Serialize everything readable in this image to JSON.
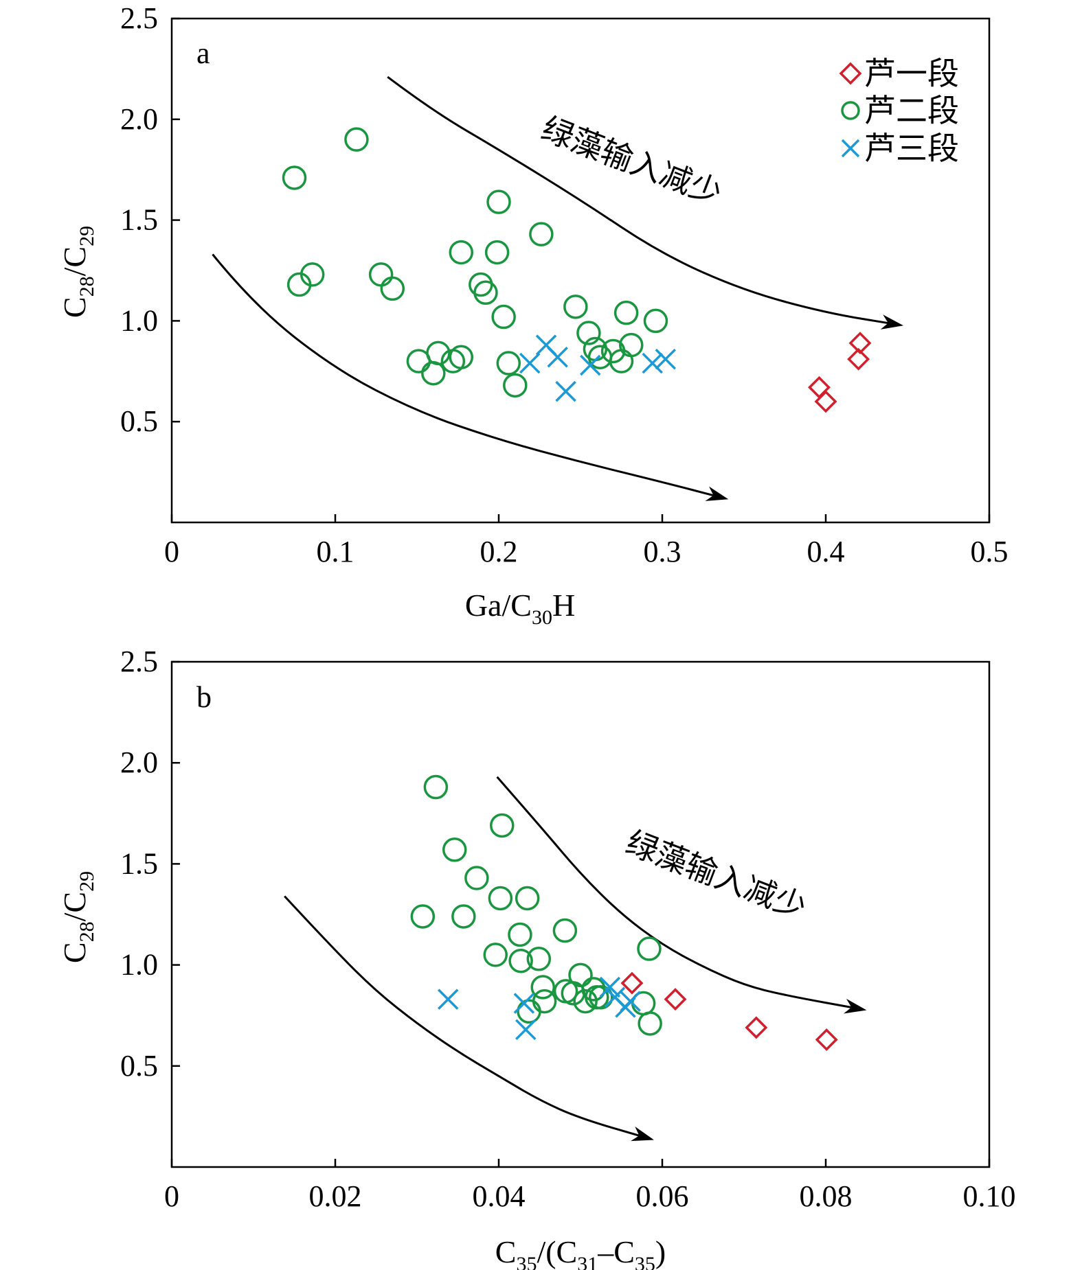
{
  "colors": {
    "l1": "#d0202e",
    "l2": "#1a9641",
    "l3": "#1a9ad6",
    "axis": "#000000"
  },
  "legend": [
    {
      "key": "l1",
      "label": "芦一段",
      "marker": "diamond"
    },
    {
      "key": "l2",
      "label": "芦二段",
      "marker": "circle"
    },
    {
      "key": "l3",
      "label": "芦三段",
      "marker": "cross"
    }
  ],
  "chart_data": [
    {
      "type": "scatter",
      "panel": "a",
      "xlabel": {
        "main": "Ga/C",
        "sub": "30",
        "tail": "H"
      },
      "ylabel": {
        "c1": "C",
        "s1": "28",
        "mid": "/C",
        "s2": "29"
      },
      "xlim": [
        0,
        0.5
      ],
      "ylim": [
        0,
        2.5
      ],
      "xticks": [
        0,
        0.1,
        0.2,
        0.3,
        0.4,
        0.5
      ],
      "xtick_labels": [
        "0",
        "0.1",
        "0.2",
        "0.3",
        "0.4",
        "0.5"
      ],
      "yticks": [
        0.5,
        1.0,
        1.5,
        2.0,
        2.5
      ],
      "ytick_labels": [
        "0.5",
        "1.0",
        "1.5",
        "2.0",
        "2.5"
      ],
      "annotation": "绿藻输入减少",
      "legend_position": "top-right",
      "grid": false,
      "series": [
        {
          "name": "芦一段",
          "key": "l1",
          "marker": "diamond",
          "points": [
            [
              0.396,
              0.67
            ],
            [
              0.4,
              0.6
            ],
            [
              0.421,
              0.89
            ],
            [
              0.42,
              0.81
            ]
          ]
        },
        {
          "name": "芦二段",
          "key": "l2",
          "marker": "circle",
          "points": [
            [
              0.075,
              1.71
            ],
            [
              0.078,
              1.18
            ],
            [
              0.086,
              1.23
            ],
            [
              0.113,
              1.9
            ],
            [
              0.128,
              1.23
            ],
            [
              0.135,
              1.16
            ],
            [
              0.151,
              0.8
            ],
            [
              0.16,
              0.74
            ],
            [
              0.163,
              0.84
            ],
            [
              0.172,
              0.8
            ],
            [
              0.177,
              0.82
            ],
            [
              0.177,
              1.34
            ],
            [
              0.189,
              1.18
            ],
            [
              0.192,
              1.14
            ],
            [
              0.199,
              1.34
            ],
            [
              0.2,
              1.59
            ],
            [
              0.203,
              1.02
            ],
            [
              0.206,
              0.79
            ],
            [
              0.21,
              0.68
            ],
            [
              0.226,
              1.43
            ],
            [
              0.247,
              1.07
            ],
            [
              0.255,
              0.94
            ],
            [
              0.259,
              0.86
            ],
            [
              0.262,
              0.82
            ],
            [
              0.27,
              0.85
            ],
            [
              0.275,
              0.8
            ],
            [
              0.278,
              1.04
            ],
            [
              0.281,
              0.88
            ],
            [
              0.296,
              1.0
            ]
          ]
        },
        {
          "name": "芦三段",
          "key": "l3",
          "marker": "cross",
          "points": [
            [
              0.219,
              0.79
            ],
            [
              0.229,
              0.88
            ],
            [
              0.236,
              0.82
            ],
            [
              0.241,
              0.65
            ],
            [
              0.256,
              0.78
            ],
            [
              0.294,
              0.79
            ],
            [
              0.302,
              0.81
            ]
          ]
        }
      ],
      "arrows": [
        {
          "path": [
            [
              0.132,
              2.21
            ],
            [
              0.16,
              2.04
            ],
            [
              0.2,
              1.85
            ],
            [
              0.25,
              1.6
            ],
            [
              0.3,
              1.33
            ],
            [
              0.35,
              1.15
            ],
            [
              0.4,
              1.04
            ],
            [
              0.445,
              0.98
            ]
          ]
        },
        {
          "path": [
            [
              0.025,
              1.33
            ],
            [
              0.05,
              1.08
            ],
            [
              0.1,
              0.76
            ],
            [
              0.15,
              0.55
            ],
            [
              0.2,
              0.41
            ],
            [
              0.25,
              0.3
            ],
            [
              0.3,
              0.2
            ],
            [
              0.338,
              0.12
            ]
          ]
        }
      ]
    },
    {
      "type": "scatter",
      "panel": "b",
      "xlabel": {
        "c1": "C",
        "s1": "35",
        "mid": "/(C",
        "s2": "31",
        "dash": "–C",
        "s3": "35",
        "tail": ")"
      },
      "ylabel": {
        "c1": "C",
        "s1": "28",
        "mid": "/C",
        "s2": "29"
      },
      "xlim": [
        0,
        0.1
      ],
      "ylim": [
        0,
        2.5
      ],
      "xticks": [
        0,
        0.02,
        0.04,
        0.06,
        0.08,
        0.1
      ],
      "xtick_labels": [
        "0",
        "0.02",
        "0.04",
        "0.06",
        "0.08",
        "0.10"
      ],
      "yticks": [
        0.5,
        1.0,
        1.5,
        2.0,
        2.5
      ],
      "ytick_labels": [
        "0.5",
        "1.0",
        "1.5",
        "2.0",
        "2.5"
      ],
      "annotation": "绿藻输入减少",
      "grid": false,
      "series": [
        {
          "name": "芦一段",
          "key": "l1",
          "marker": "diamond",
          "points": [
            [
              0.0563,
              0.91
            ],
            [
              0.0616,
              0.83
            ],
            [
              0.0715,
              0.69
            ],
            [
              0.0801,
              0.63
            ]
          ]
        },
        {
          "name": "芦二段",
          "key": "l2",
          "marker": "circle",
          "points": [
            [
              0.0323,
              1.88
            ],
            [
              0.0307,
              1.24
            ],
            [
              0.0346,
              1.57
            ],
            [
              0.0357,
              1.24
            ],
            [
              0.0373,
              1.43
            ],
            [
              0.0396,
              1.05
            ],
            [
              0.0402,
              1.33
            ],
            [
              0.0404,
              1.69
            ],
            [
              0.0426,
              1.15
            ],
            [
              0.0427,
              1.02
            ],
            [
              0.0435,
              1.33
            ],
            [
              0.0437,
              0.77
            ],
            [
              0.0449,
              1.03
            ],
            [
              0.0454,
              0.89
            ],
            [
              0.0456,
              0.82
            ],
            [
              0.0481,
              1.17
            ],
            [
              0.0482,
              0.87
            ],
            [
              0.0491,
              0.86
            ],
            [
              0.05,
              0.95
            ],
            [
              0.0506,
              0.82
            ],
            [
              0.0516,
              0.88
            ],
            [
              0.052,
              0.84
            ],
            [
              0.0525,
              0.84
            ],
            [
              0.0577,
              0.81
            ],
            [
              0.0584,
              1.08
            ],
            [
              0.0585,
              0.71
            ]
          ]
        },
        {
          "name": "芦三段",
          "key": "l3",
          "marker": "cross",
          "points": [
            [
              0.0338,
              0.83
            ],
            [
              0.0431,
              0.81
            ],
            [
              0.0433,
              0.68
            ],
            [
              0.0536,
              0.89
            ],
            [
              0.0542,
              0.84
            ],
            [
              0.0555,
              0.79
            ],
            [
              0.0561,
              0.82
            ]
          ]
        }
      ],
      "arrows": [
        {
          "path": [
            [
              0.0398,
              1.93
            ],
            [
              0.045,
              1.69
            ],
            [
              0.05,
              1.45
            ],
            [
              0.055,
              1.25
            ],
            [
              0.06,
              1.1
            ],
            [
              0.065,
              0.99
            ],
            [
              0.07,
              0.9
            ],
            [
              0.075,
              0.85
            ],
            [
              0.0845,
              0.78
            ]
          ]
        },
        {
          "path": [
            [
              0.0138,
              1.34
            ],
            [
              0.02,
              1.07
            ],
            [
              0.025,
              0.87
            ],
            [
              0.03,
              0.71
            ],
            [
              0.035,
              0.57
            ],
            [
              0.04,
              0.45
            ],
            [
              0.045,
              0.33
            ],
            [
              0.05,
              0.24
            ],
            [
              0.0585,
              0.14
            ]
          ]
        }
      ]
    }
  ]
}
